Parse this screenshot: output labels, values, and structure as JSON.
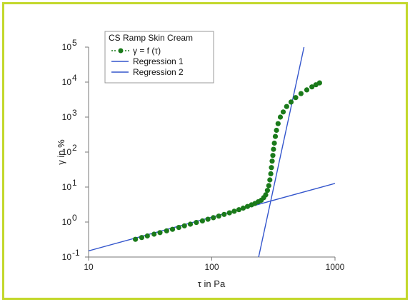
{
  "chart_data": {
    "type": "scatter",
    "legend": {
      "title": "CS Ramp Skin Cream",
      "placement": "top-left",
      "entries": [
        {
          "label": "γ = f (τ)",
          "kind": "marker",
          "color": "#1a7a1a"
        },
        {
          "label": "Regression 1",
          "kind": "line",
          "color": "#3355cc"
        },
        {
          "label": "Regression 2",
          "kind": "line",
          "color": "#3355cc"
        }
      ]
    },
    "xlabel": "τ in Pa",
    "ylabel": "γ in %",
    "xscale": "log",
    "yscale": "log",
    "xlim": [
      10,
      1000
    ],
    "ylim": [
      0.1,
      100000
    ],
    "x_ticks": [
      {
        "value": 10,
        "label": "10"
      },
      {
        "value": 100,
        "label": "100"
      },
      {
        "value": 1000,
        "label": "1000"
      }
    ],
    "y_ticks": [
      {
        "value": 0.1,
        "base": "10",
        "exp": "-1"
      },
      {
        "value": 1,
        "base": "10",
        "exp": "0"
      },
      {
        "value": 10,
        "base": "10",
        "exp": "1"
      },
      {
        "value": 100,
        "base": "10",
        "exp": "2"
      },
      {
        "value": 1000,
        "base": "10",
        "exp": "3"
      },
      {
        "value": 10000,
        "base": "10",
        "exp": "4"
      },
      {
        "value": 100000,
        "base": "10",
        "exp": "5"
      }
    ],
    "grid": false,
    "series": [
      {
        "name": "γ = f (τ)",
        "kind": "points",
        "color": "#1a7a1a",
        "x": [
          24,
          27,
          30,
          34,
          38,
          43,
          48,
          54,
          60,
          67,
          75,
          84,
          93,
          103,
          114,
          126,
          139,
          152,
          166,
          180,
          195,
          210,
          224,
          238,
          252,
          264,
          274,
          283,
          290,
          296,
          301,
          305,
          309,
          313,
          317,
          322,
          328,
          335,
          345,
          360,
          380,
          405,
          440,
          480,
          530,
          590,
          650,
          700,
          750
        ],
        "y": [
          0.32,
          0.36,
          0.4,
          0.45,
          0.5,
          0.56,
          0.62,
          0.7,
          0.78,
          0.87,
          0.97,
          1.08,
          1.2,
          1.33,
          1.48,
          1.65,
          1.83,
          2.03,
          2.25,
          2.5,
          2.78,
          3.1,
          3.4,
          3.8,
          4.2,
          5.0,
          6.0,
          8.0,
          11,
          16,
          24,
          36,
          55,
          80,
          120,
          180,
          280,
          420,
          650,
          1000,
          1400,
          2000,
          2700,
          3600,
          4700,
          6000,
          7300,
          8400,
          9500
        ]
      },
      {
        "name": "Regression 1",
        "kind": "line",
        "color": "#3355cc",
        "x": [
          240,
          560
        ],
        "y": [
          0.1,
          100000
        ]
      },
      {
        "name": "Regression 2",
        "kind": "line",
        "color": "#3355cc",
        "x": [
          10,
          1000
        ],
        "y": [
          0.15,
          12.7
        ]
      }
    ]
  }
}
